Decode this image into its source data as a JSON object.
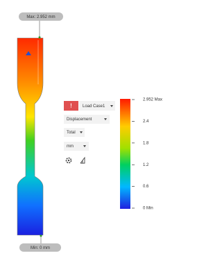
{
  "viewport": {
    "max_label": "Max: 2.952 mm",
    "min_label": "Min: 0 mm",
    "panel": {
      "load_case": "Load Case1",
      "result": "Displacement",
      "component": "Total",
      "unit": "mm"
    },
    "legend": {
      "labels": [
        "2.952 Max",
        "2.4",
        "1.8",
        "1.2",
        "0.6",
        "0 Min"
      ]
    }
  }
}
